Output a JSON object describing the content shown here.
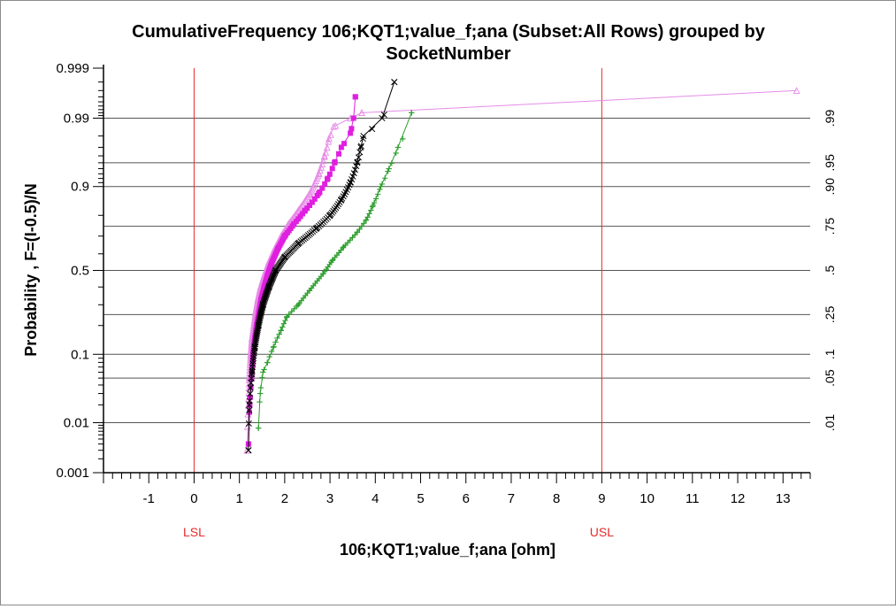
{
  "chart_data": {
    "type": "scatter",
    "title_line1": "CumulativeFrequency 106;KQT1;value_f;ana (Subset:All Rows) grouped by",
    "title_line2": "SocketNumber",
    "xlabel": "106;KQT1;value_f;ana [ohm]",
    "ylabel": "Probability , F=(I-0.5)/N",
    "xlim": [
      -2.0,
      13.6
    ],
    "x_ticks": [
      -1,
      0,
      1,
      2,
      3,
      4,
      5,
      6,
      7,
      8,
      9,
      10,
      11,
      12,
      13
    ],
    "y_scale": "normal-probability",
    "y_ticks_left": [
      {
        "p": 0.001,
        "label": "0.001"
      },
      {
        "p": 0.01,
        "label": "0.01"
      },
      {
        "p": 0.1,
        "label": "0.1"
      },
      {
        "p": 0.5,
        "label": "0.5"
      },
      {
        "p": 0.9,
        "label": "0.9"
      },
      {
        "p": 0.99,
        "label": "0.99"
      },
      {
        "p": 0.999,
        "label": "0.999"
      }
    ],
    "gridlines": [
      {
        "p": 0.01,
        "label": ".01"
      },
      {
        "p": 0.05,
        "label": ".05"
      },
      {
        "p": 0.1,
        "label": ".1"
      },
      {
        "p": 0.25,
        "label": ".25"
      },
      {
        "p": 0.5,
        "label": ".5"
      },
      {
        "p": 0.75,
        "label": ".75"
      },
      {
        "p": 0.9,
        "label": ".90"
      },
      {
        "p": 0.95,
        "label": ".95"
      },
      {
        "p": 0.99,
        "label": ".99"
      }
    ],
    "spec_limits": [
      {
        "name": "LSL",
        "x": 0,
        "color": "#e8292b"
      },
      {
        "name": "USL",
        "x": 9,
        "color": "#e8292b"
      }
    ],
    "series": [
      {
        "color": "#e68ce6",
        "marker": "triangle",
        "points": [
          [
            1.17,
            0.003
          ],
          [
            1.2,
            0.02
          ],
          [
            1.22,
            0.05
          ],
          [
            1.25,
            0.1
          ],
          [
            1.28,
            0.15
          ],
          [
            1.32,
            0.2
          ],
          [
            1.36,
            0.26
          ],
          [
            1.41,
            0.33
          ],
          [
            1.47,
            0.4
          ],
          [
            1.55,
            0.47
          ],
          [
            1.65,
            0.55
          ],
          [
            1.78,
            0.63
          ],
          [
            1.92,
            0.7
          ],
          [
            2.08,
            0.76
          ],
          [
            2.3,
            0.82
          ],
          [
            2.55,
            0.88
          ],
          [
            2.75,
            0.93
          ],
          [
            2.88,
            0.96
          ],
          [
            2.98,
            0.978
          ],
          [
            3.08,
            0.986
          ],
          [
            3.45,
            0.99
          ],
          [
            3.7,
            0.992
          ],
          [
            13.3,
            0.997
          ]
        ]
      },
      {
        "color": "#e01fe0",
        "marker": "square",
        "points": [
          [
            1.2,
            0.004
          ],
          [
            1.23,
            0.02
          ],
          [
            1.27,
            0.05
          ],
          [
            1.3,
            0.1
          ],
          [
            1.34,
            0.15
          ],
          [
            1.38,
            0.2
          ],
          [
            1.43,
            0.26
          ],
          [
            1.48,
            0.33
          ],
          [
            1.55,
            0.4
          ],
          [
            1.62,
            0.47
          ],
          [
            1.72,
            0.55
          ],
          [
            1.85,
            0.63
          ],
          [
            2.0,
            0.7
          ],
          [
            2.2,
            0.76
          ],
          [
            2.45,
            0.82
          ],
          [
            2.75,
            0.88
          ],
          [
            2.95,
            0.92
          ],
          [
            3.1,
            0.95
          ],
          [
            3.25,
            0.97
          ],
          [
            3.45,
            0.982
          ],
          [
            3.52,
            0.99
          ],
          [
            3.56,
            0.996
          ]
        ]
      },
      {
        "color": "#000000",
        "marker": "x",
        "points": [
          [
            1.2,
            0.003
          ],
          [
            1.22,
            0.02
          ],
          [
            1.28,
            0.06
          ],
          [
            1.34,
            0.12
          ],
          [
            1.42,
            0.2
          ],
          [
            1.52,
            0.3
          ],
          [
            1.65,
            0.4
          ],
          [
            1.8,
            0.5
          ],
          [
            2.0,
            0.58
          ],
          [
            2.3,
            0.66
          ],
          [
            2.7,
            0.74
          ],
          [
            3.0,
            0.8
          ],
          [
            3.25,
            0.86
          ],
          [
            3.45,
            0.91
          ],
          [
            3.6,
            0.95
          ],
          [
            3.68,
            0.97
          ],
          [
            3.74,
            0.98
          ],
          [
            4.15,
            0.99
          ],
          [
            4.42,
            0.998
          ]
        ]
      },
      {
        "color": "#2e9e2e",
        "marker": "plus",
        "points": [
          [
            1.42,
            0.008
          ],
          [
            1.46,
            0.03
          ],
          [
            1.52,
            0.06
          ],
          [
            1.62,
            0.08
          ],
          [
            1.75,
            0.12
          ],
          [
            1.92,
            0.18
          ],
          [
            2.05,
            0.24
          ],
          [
            2.3,
            0.3
          ],
          [
            2.55,
            0.38
          ],
          [
            2.85,
            0.48
          ],
          [
            3.05,
            0.56
          ],
          [
            3.3,
            0.64
          ],
          [
            3.6,
            0.72
          ],
          [
            3.8,
            0.78
          ],
          [
            3.95,
            0.84
          ],
          [
            4.12,
            0.9
          ],
          [
            4.3,
            0.94
          ],
          [
            4.5,
            0.97
          ],
          [
            4.8,
            0.992
          ]
        ]
      }
    ]
  }
}
